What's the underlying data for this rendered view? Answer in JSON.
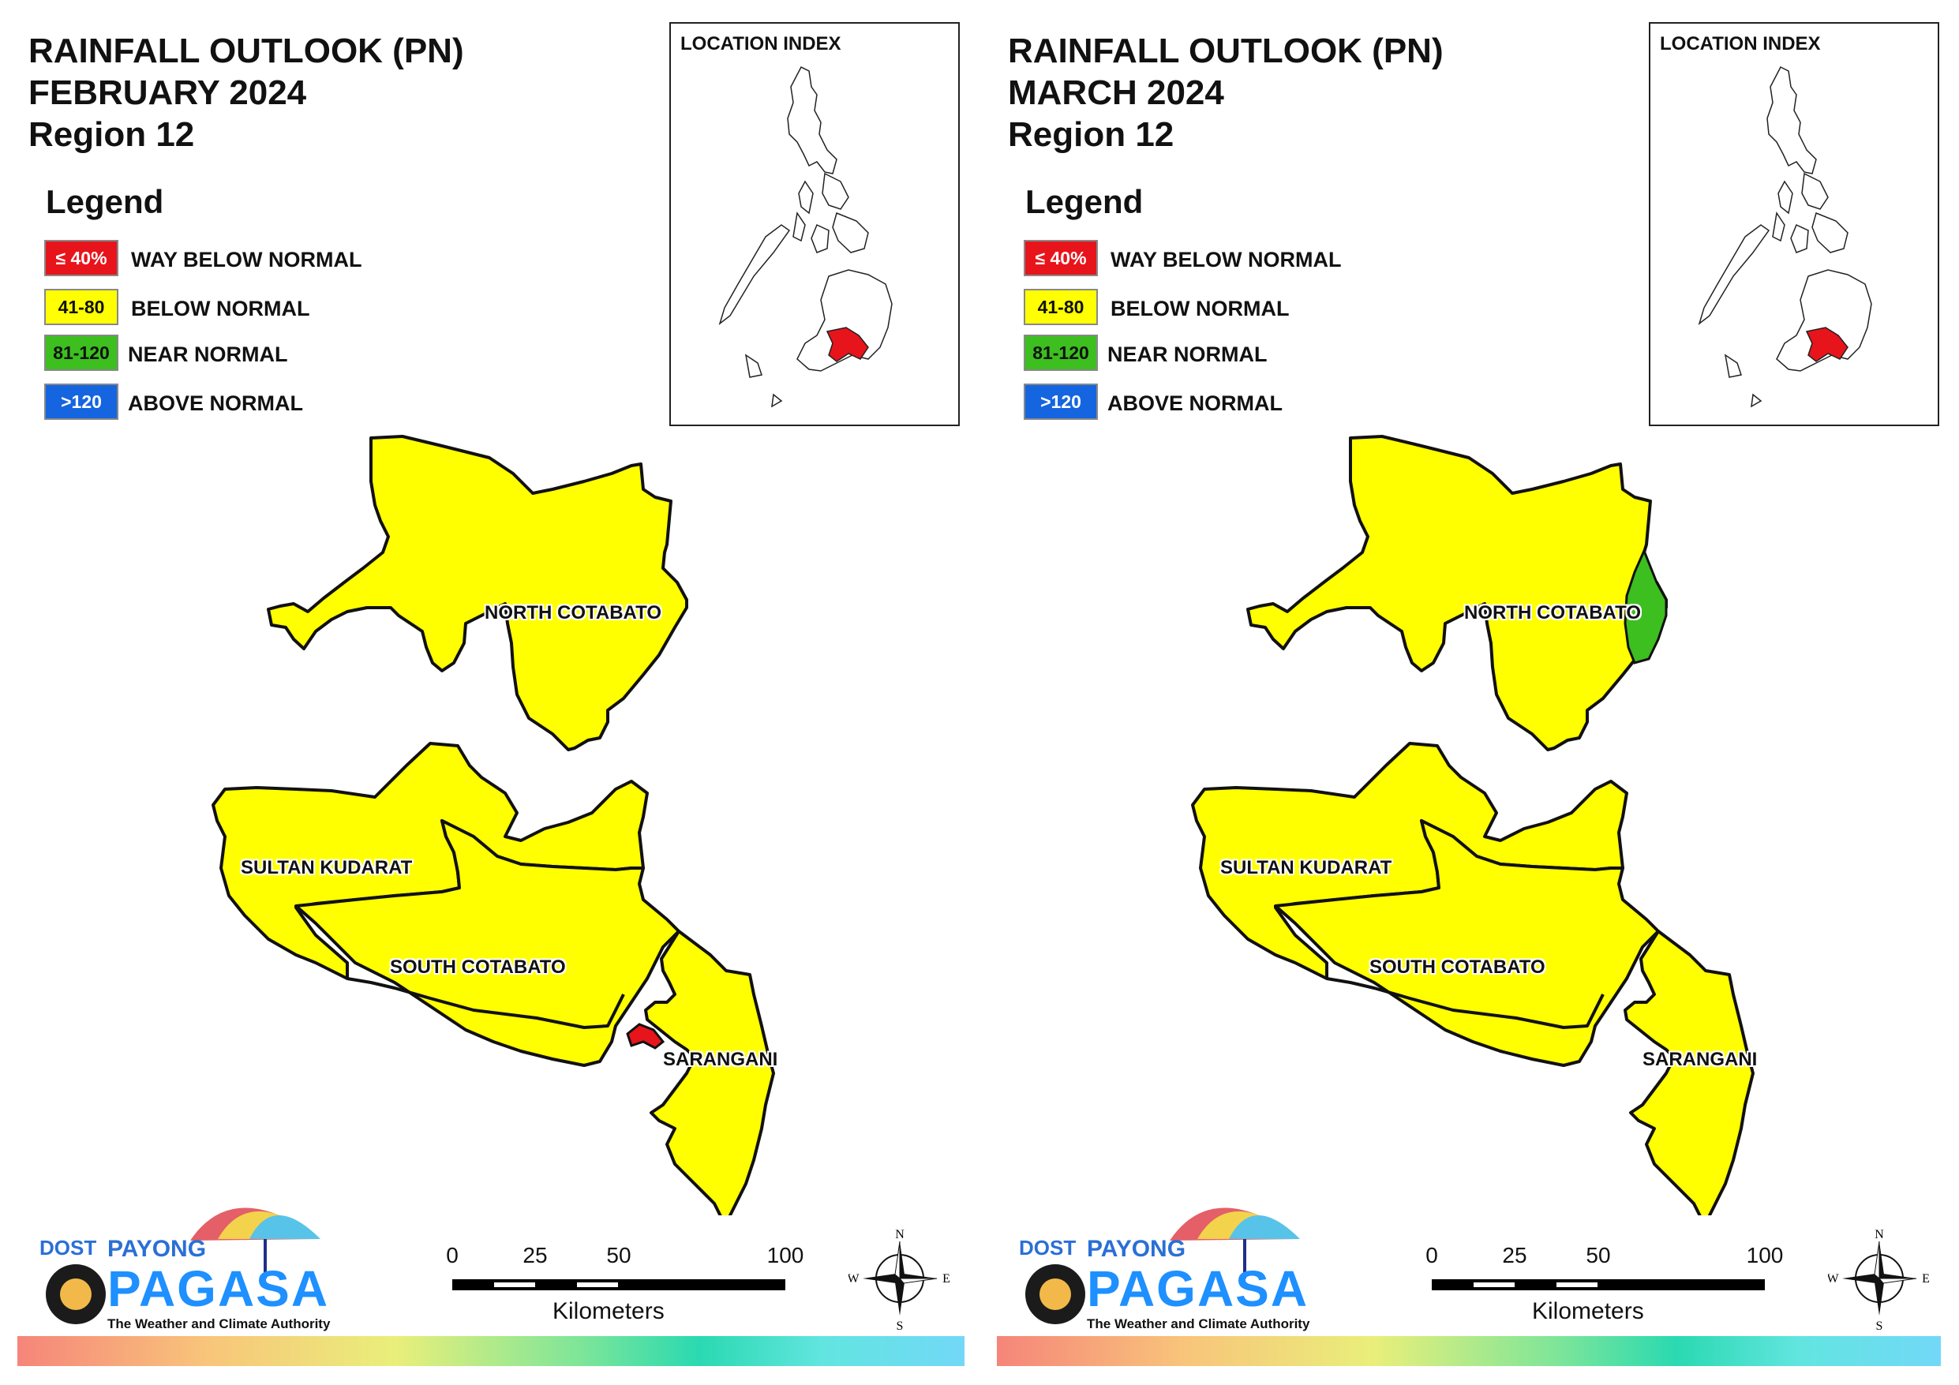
{
  "panels": [
    {
      "title_line1": "RAINFALL OUTLOOK (PN)",
      "title_line2": "FEBRUARY 2024",
      "title_line3": "Region 12",
      "special_highlight": "sarangani-coast-red"
    },
    {
      "title_line1": "RAINFALL OUTLOOK (PN)",
      "title_line2": "MARCH 2024",
      "title_line3": "Region 12",
      "special_highlight": "north-cotabato-east-green"
    }
  ],
  "legend": {
    "title": "Legend",
    "items": [
      {
        "swatch": "≤ 40%",
        "label": "WAY BELOW NORMAL",
        "color": "#e8141b",
        "text_color": "#ffffff"
      },
      {
        "swatch": "41-80",
        "label": "BELOW NORMAL",
        "color": "#ffff00",
        "text_color": "#111111"
      },
      {
        "swatch": "81-120",
        "label": "NEAR NORMAL",
        "color": "#3cbf1f",
        "text_color": "#111111"
      },
      {
        "swatch": ">120",
        "label": "ABOVE NORMAL",
        "color": "#1565e0",
        "text_color": "#ffffff"
      }
    ]
  },
  "location_index": {
    "title": "LOCATION INDEX"
  },
  "provinces": {
    "north_cotabato": "NORTH COTABATO",
    "sultan_kudarat": "SULTAN KUDARAT",
    "south_cotabato": "SOUTH COTABATO",
    "sarangani": "SARANGANI"
  },
  "colors": {
    "below_normal": "#ffff00",
    "way_below_normal": "#e8141b",
    "near_normal": "#3cbf1f",
    "outline": "#111111"
  },
  "scalebar": {
    "ticks": [
      "0",
      "25",
      "50",
      "100"
    ],
    "units": "Kilometers"
  },
  "compass": {
    "n": "N",
    "s": "S",
    "e": "E",
    "w": "W"
  },
  "logo": {
    "dost": "DOST",
    "payong": "PAYONG",
    "pagasa": "PAGASA",
    "tagline": "The Weather and Climate Authority"
  }
}
